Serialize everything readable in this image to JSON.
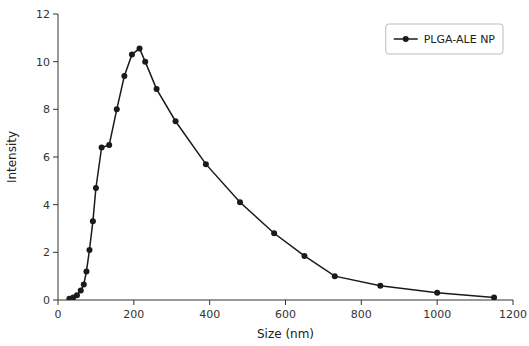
{
  "chart_data": {
    "type": "line",
    "x": [
      30,
      40,
      50,
      60,
      68,
      75,
      83,
      92,
      100,
      115,
      135,
      155,
      175,
      195,
      215,
      230,
      260,
      310,
      390,
      480,
      570,
      650,
      730,
      850,
      1000,
      1150
    ],
    "series": [
      {
        "name": "PLGA-ALE NP",
        "color": "#1a1a1a",
        "marker": "circle",
        "values": [
          0.05,
          0.1,
          0.2,
          0.4,
          0.65,
          1.2,
          2.1,
          3.3,
          4.7,
          6.4,
          6.5,
          8.0,
          9.4,
          10.3,
          10.55,
          10.0,
          8.85,
          7.5,
          5.7,
          4.1,
          2.8,
          1.85,
          1.0,
          0.6,
          0.3,
          0.1
        ]
      }
    ],
    "xlabel": "Size (nm)",
    "ylabel": "Intensity",
    "xlim": [
      0,
      1200
    ],
    "ylim": [
      0,
      12
    ],
    "xticks": [
      0,
      200,
      400,
      600,
      800,
      1000,
      1200
    ],
    "yticks": [
      0,
      2,
      4,
      6,
      8,
      10,
      12
    ],
    "grid": false,
    "legend": "upper right"
  }
}
